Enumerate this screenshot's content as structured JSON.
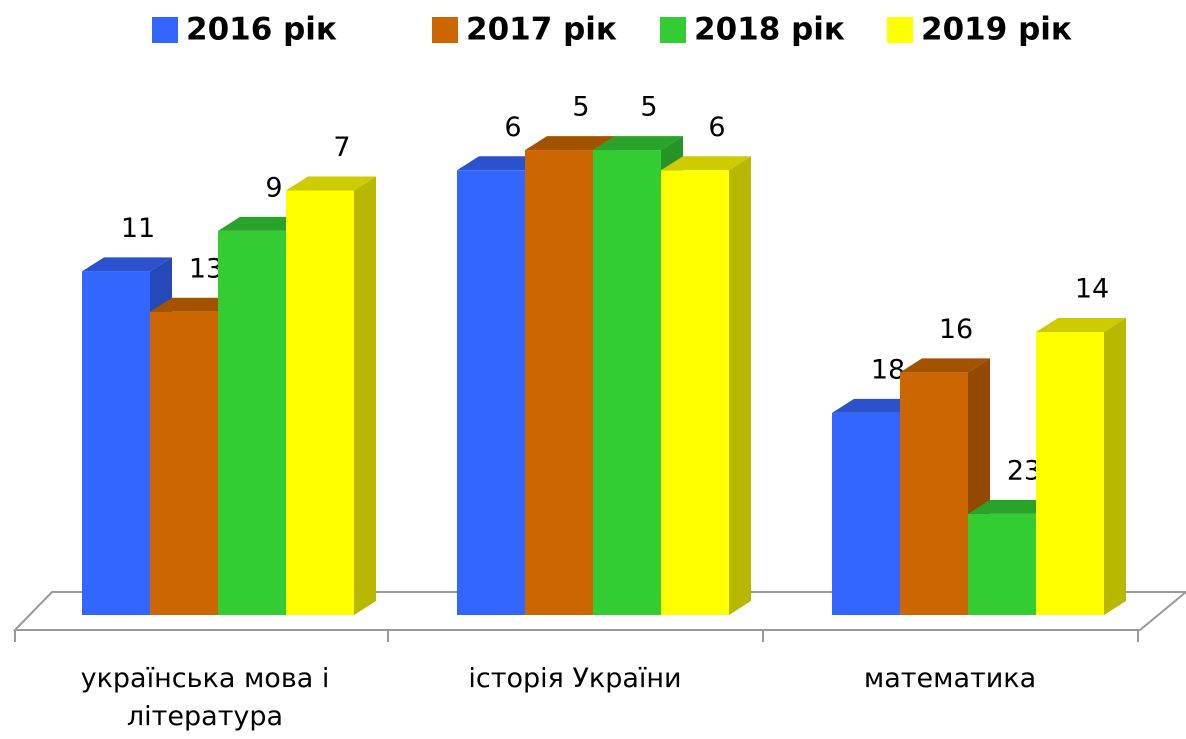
{
  "chart_data": {
    "type": "bar3d",
    "categories": [
      "українська мова і література",
      "історія України",
      "математика"
    ],
    "series": [
      {
        "name": "2016 рік",
        "color": "#3366ff",
        "values": [
          11,
          6,
          18
        ]
      },
      {
        "name": "2017 рік",
        "color": "#cc6600",
        "values": [
          13,
          5,
          16
        ]
      },
      {
        "name": "2018 рік",
        "color": "#33cc33",
        "values": [
          9,
          5,
          23
        ]
      },
      {
        "name": "2019 рік",
        "color": "#ffff00",
        "values": [
          7,
          6,
          14
        ]
      }
    ],
    "ylim": [
      28,
      0
    ],
    "legend": "top"
  }
}
